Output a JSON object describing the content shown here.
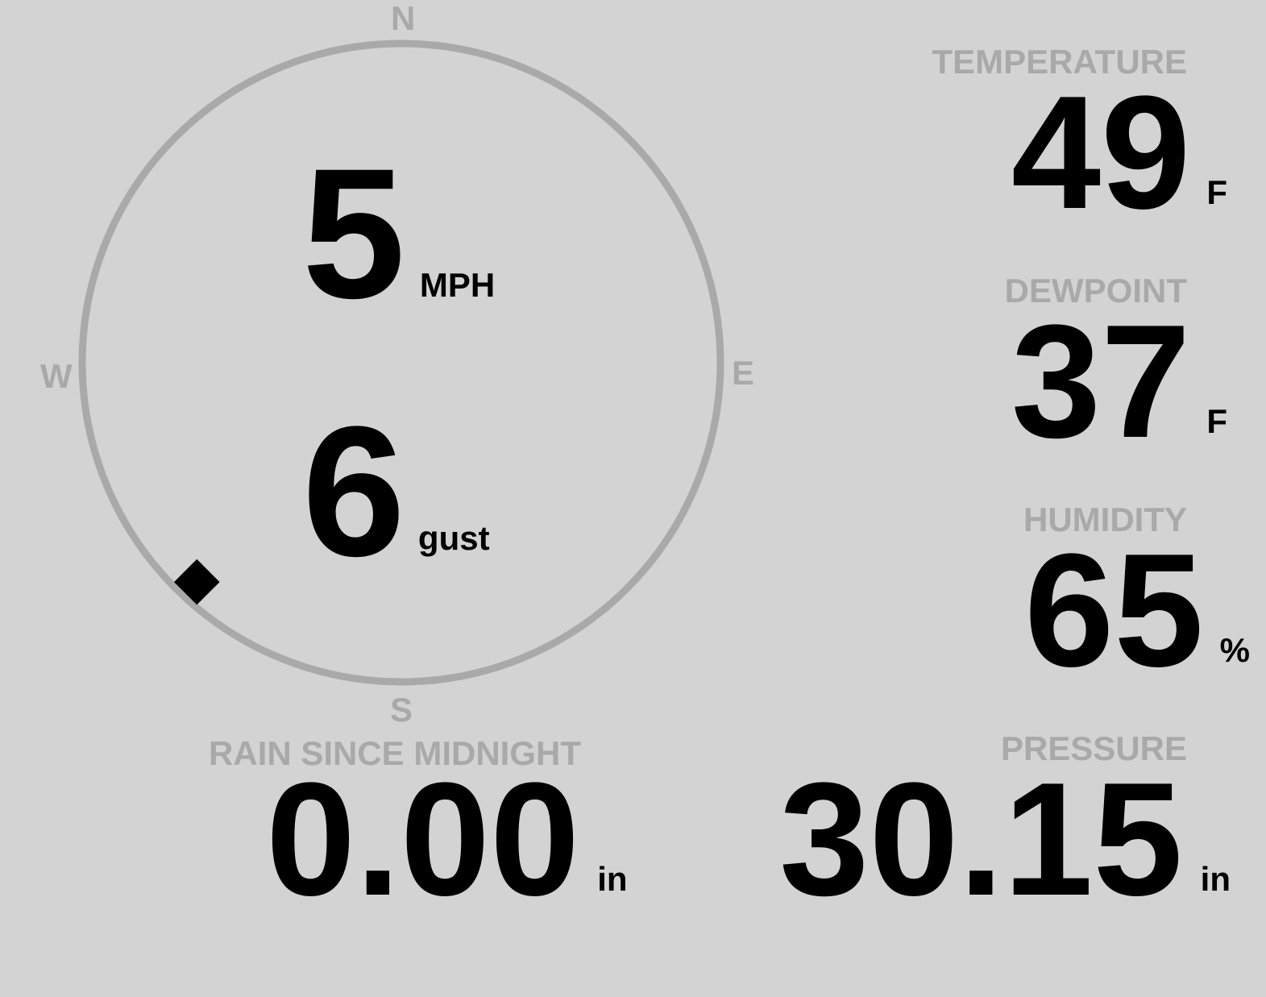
{
  "wind": {
    "speed": "5",
    "speed_unit": "MPH",
    "gust": "6",
    "gust_label": "gust",
    "direction_deg": 223,
    "compass": {
      "n": "N",
      "e": "E",
      "s": "S",
      "w": "W"
    }
  },
  "temperature": {
    "label": "TEMPERATURE",
    "value": "49",
    "unit": "F"
  },
  "dewpoint": {
    "label": "DEWPOINT",
    "value": "37",
    "unit": "F"
  },
  "humidity": {
    "label": "HUMIDITY",
    "value": "65",
    "unit": "%"
  },
  "rain": {
    "label": "RAIN SINCE MIDNIGHT",
    "value": "0.00",
    "unit": "in"
  },
  "pressure": {
    "label": "PRESSURE",
    "value": "30.15",
    "unit": "in"
  },
  "colors": {
    "background": "#d3d3d3",
    "dim": "#a9a9a9",
    "text": "#000000"
  }
}
